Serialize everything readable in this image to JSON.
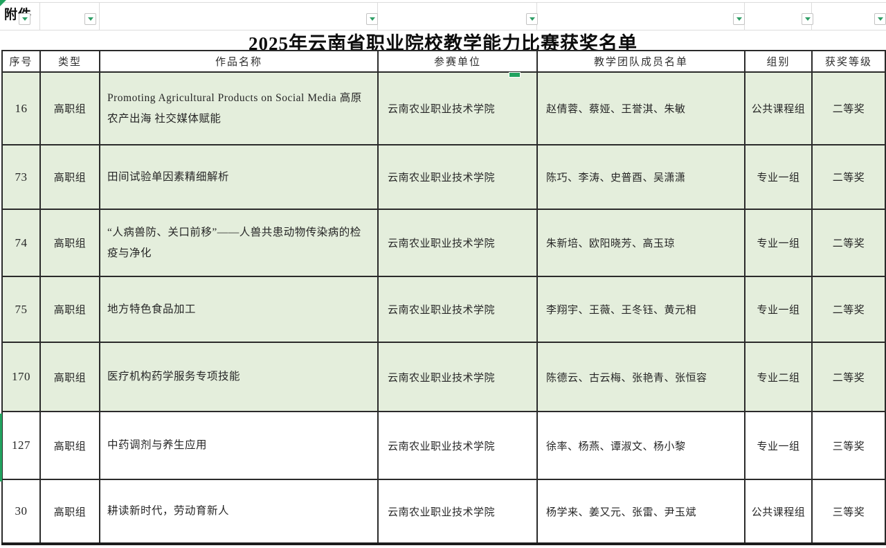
{
  "sheet": {
    "a1_label": "附件"
  },
  "title": "2025年云南省职业院校教学能力比赛获奖名单",
  "table": {
    "columns": [
      "序号",
      "类型",
      "作品名称",
      "参赛单位",
      "教学团队成员名单",
      "组别",
      "获奖等级"
    ],
    "rows": [
      {
        "no": "16",
        "type": "高职组",
        "work": "Promoting Agricultural Products on Social Media 高原农产出海 社交媒体赋能",
        "unit": "云南农业职业技术学院",
        "team": "赵倩蓉、蔡娅、王誉淇、朱敏",
        "group": "公共课程组",
        "award": "二等奖",
        "shaded": true
      },
      {
        "no": "73",
        "type": "高职组",
        "work": "田间试验单因素精细解析",
        "unit": "云南农业职业技术学院",
        "team": "陈巧、李涛、史普酉、吴潇潇",
        "group": "专业一组",
        "award": "二等奖",
        "shaded": true
      },
      {
        "no": "74",
        "type": "高职组",
        "work": "“人病兽防、关口前移”——人兽共患动物传染病的检疫与净化",
        "unit": "云南农业职业技术学院",
        "team": "朱新培、欧阳晓芳、高玉琼",
        "group": "专业一组",
        "award": "二等奖",
        "shaded": true
      },
      {
        "no": "75",
        "type": "高职组",
        "work": "地方特色食品加工",
        "unit": "云南农业职业技术学院",
        "team": "李翔宇、王薇、王冬钰、黄元相",
        "group": "专业一组",
        "award": "二等奖",
        "shaded": true
      },
      {
        "no": "170",
        "type": "高职组",
        "work": "医疗机构药学服务专项技能",
        "unit": "云南农业职业技术学院",
        "team": "陈德云、古云梅、张艳青、张恒容",
        "group": "专业二组",
        "award": "二等奖",
        "shaded": true
      },
      {
        "no": "127",
        "type": "高职组",
        "work": "中药调剂与养生应用",
        "unit": "云南农业职业技术学院",
        "team": "徐率、杨燕、谭淑文、杨小黎",
        "group": "专业一组",
        "award": "三等奖",
        "shaded": false
      },
      {
        "no": "30",
        "type": "高职组",
        "work": "耕读新时代，劳动育新人",
        "unit": "云南农业职业技术学院",
        "team": "杨学来、姜又元、张雷、尹玉斌",
        "group": "公共课程组",
        "award": "三等奖",
        "shaded": false
      }
    ]
  },
  "colors": {
    "row_highlight": "#e4eedc",
    "selection_green": "#21a35f",
    "border_dark": "#2a2a2a",
    "grid_light": "#dcdcdc",
    "filter_arrow_green": "#2f9e66"
  }
}
